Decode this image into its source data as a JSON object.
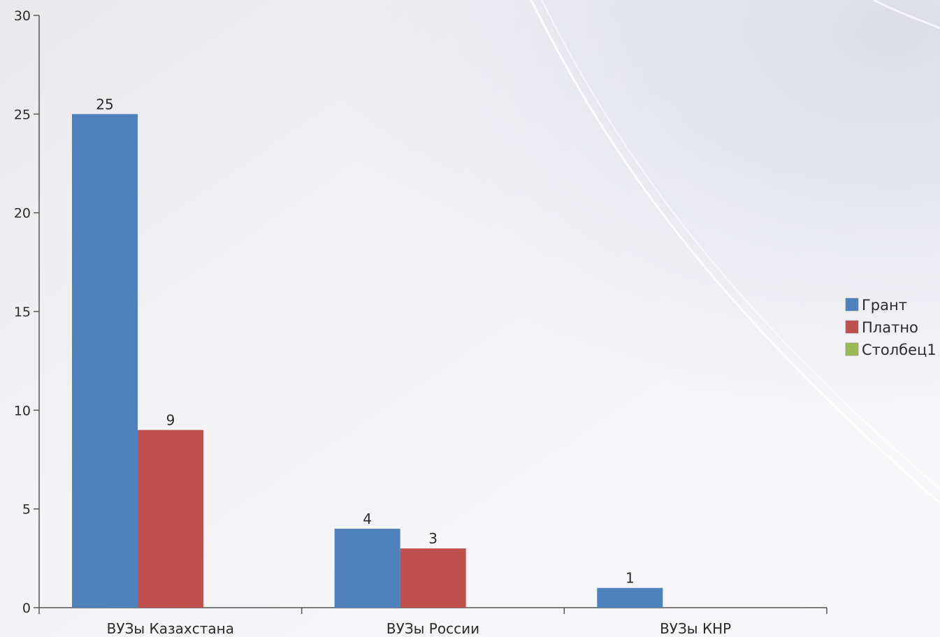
{
  "chart_data": {
    "type": "bar",
    "title": "",
    "xlabel": "",
    "ylabel": "",
    "categories": [
      "ВУЗы Казахстана",
      "ВУЗы России",
      "ВУЗы КНР"
    ],
    "series": [
      {
        "name": "Грант",
        "color": "#4f81bd",
        "values": [
          25,
          4,
          1
        ]
      },
      {
        "name": "Платно",
        "color": "#c0504d",
        "values": [
          9,
          3,
          null
        ]
      },
      {
        "name": "Столбец1",
        "color": "#9bbb59",
        "values": [
          null,
          null,
          null
        ]
      }
    ],
    "ylim": [
      0,
      30
    ],
    "yticks": [
      "0",
      "5",
      "10",
      "15",
      "20",
      "25",
      "30"
    ],
    "data_labels": true,
    "grid": false,
    "legend_position": "right"
  }
}
